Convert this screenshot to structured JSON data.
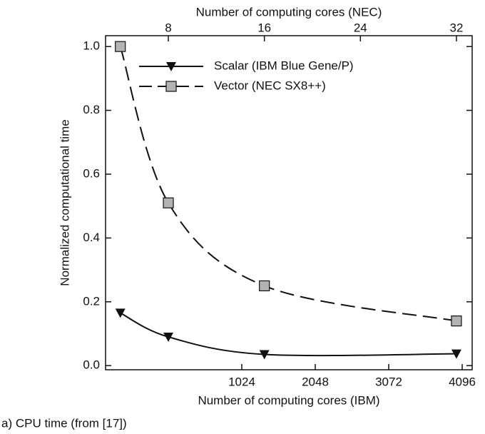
{
  "chart_data": {
    "type": "line",
    "x_label": "Number of computing cores (IBM)",
    "x2_label": "Number of computing cores (NEC)",
    "y_label": "Normalized computational time",
    "caption": "a) CPU time (from [17])",
    "x": [
      4,
      8,
      16,
      32
    ],
    "xlim": [
      2.77,
      33.31
    ],
    "x2lim": [
      -875,
      4235
    ],
    "xticks": [
      8,
      16,
      24,
      32
    ],
    "x2ticks": [
      1024,
      2048,
      3072,
      4096
    ],
    "ylim": [
      -0.013,
      1.034
    ],
    "yticks": [
      {
        "value": 0,
        "label": "0.0"
      },
      0.2,
      0.4,
      0.6,
      0.8,
      {
        "value": 1,
        "label": "1.0"
      }
    ],
    "legend": "upper left",
    "series": [
      {
        "name": "Scalar (IBM Blue Gene/P)",
        "color": "#111111",
        "marker": "triangle-down",
        "dash": "solid",
        "values": [
          0.165,
          0.09,
          0.035,
          0.037
        ]
      },
      {
        "name": "Vector (NEC SX8++)",
        "color": "#111111",
        "marker": "square",
        "marker_fill": "#b3b3b3",
        "dash": "dashed",
        "values": [
          1.0,
          0.51,
          0.25,
          0.14
        ]
      }
    ]
  }
}
